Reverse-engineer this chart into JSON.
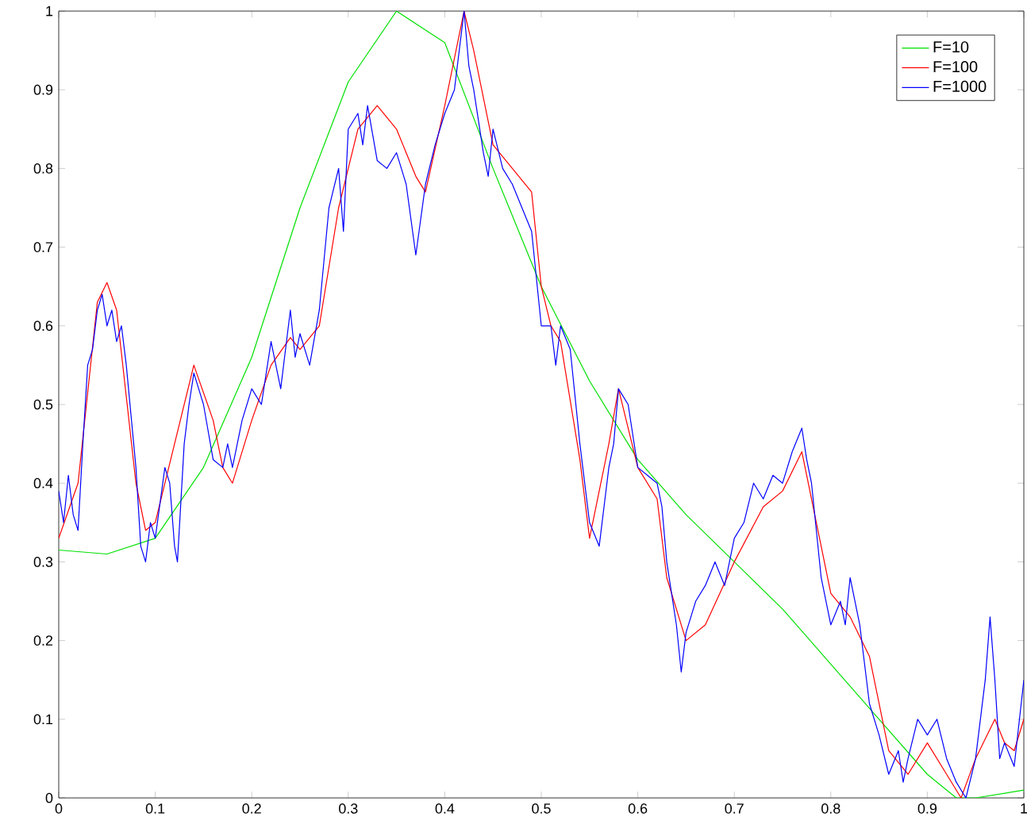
{
  "chart_data": {
    "type": "line",
    "xlim": [
      0,
      1
    ],
    "ylim": [
      0,
      1
    ],
    "xticks": [
      0,
      0.1,
      0.2,
      0.3,
      0.4,
      0.5,
      0.6,
      0.7,
      0.8,
      0.9,
      1
    ],
    "yticks": [
      0,
      0.1,
      0.2,
      0.3,
      0.4,
      0.5,
      0.6,
      0.7,
      0.8,
      0.9,
      1
    ],
    "legend": "top right",
    "grid": false,
    "marker": "none",
    "line_style": "solid",
    "series": [
      {
        "name": "F=10",
        "color": "#00e000",
        "x": [
          0,
          0.05,
          0.1,
          0.15,
          0.2,
          0.25,
          0.3,
          0.35,
          0.4,
          0.45,
          0.5,
          0.55,
          0.6,
          0.65,
          0.7,
          0.75,
          0.8,
          0.85,
          0.9,
          0.93,
          0.95,
          1.0
        ],
        "values": [
          0.315,
          0.31,
          0.33,
          0.42,
          0.56,
          0.75,
          0.91,
          1.0,
          0.96,
          0.8,
          0.65,
          0.53,
          0.43,
          0.36,
          0.3,
          0.24,
          0.17,
          0.1,
          0.03,
          0.0,
          0.0,
          0.01
        ]
      },
      {
        "name": "F=100",
        "color": "#ff0000",
        "x": [
          0,
          0.02,
          0.04,
          0.05,
          0.06,
          0.08,
          0.09,
          0.1,
          0.12,
          0.14,
          0.16,
          0.17,
          0.18,
          0.2,
          0.22,
          0.24,
          0.25,
          0.27,
          0.29,
          0.31,
          0.33,
          0.35,
          0.37,
          0.38,
          0.4,
          0.42,
          0.43,
          0.45,
          0.47,
          0.49,
          0.5,
          0.51,
          0.52,
          0.54,
          0.55,
          0.57,
          0.58,
          0.6,
          0.62,
          0.63,
          0.65,
          0.67,
          0.7,
          0.73,
          0.75,
          0.77,
          0.78,
          0.8,
          0.82,
          0.84,
          0.86,
          0.88,
          0.9,
          0.92,
          0.935,
          0.95,
          0.97,
          0.98,
          0.99,
          1.0
        ],
        "values": [
          0.33,
          0.4,
          0.63,
          0.655,
          0.62,
          0.4,
          0.34,
          0.35,
          0.45,
          0.55,
          0.48,
          0.42,
          0.4,
          0.48,
          0.55,
          0.585,
          0.57,
          0.6,
          0.75,
          0.85,
          0.88,
          0.85,
          0.79,
          0.77,
          0.88,
          1.0,
          0.95,
          0.83,
          0.8,
          0.77,
          0.65,
          0.6,
          0.58,
          0.43,
          0.33,
          0.45,
          0.52,
          0.42,
          0.38,
          0.28,
          0.2,
          0.22,
          0.3,
          0.37,
          0.39,
          0.44,
          0.38,
          0.26,
          0.23,
          0.18,
          0.06,
          0.03,
          0.07,
          0.03,
          0.0,
          0.05,
          0.1,
          0.07,
          0.06,
          0.1
        ]
      },
      {
        "name": "F=1000",
        "color": "#0000ff",
        "x": [
          0,
          0.005,
          0.01,
          0.015,
          0.02,
          0.025,
          0.03,
          0.035,
          0.04,
          0.045,
          0.05,
          0.055,
          0.06,
          0.065,
          0.07,
          0.08,
          0.085,
          0.09,
          0.095,
          0.1,
          0.11,
          0.115,
          0.12,
          0.123,
          0.13,
          0.135,
          0.14,
          0.145,
          0.15,
          0.16,
          0.17,
          0.175,
          0.18,
          0.19,
          0.2,
          0.21,
          0.22,
          0.225,
          0.23,
          0.24,
          0.245,
          0.25,
          0.26,
          0.27,
          0.28,
          0.29,
          0.295,
          0.3,
          0.31,
          0.315,
          0.32,
          0.33,
          0.34,
          0.35,
          0.36,
          0.37,
          0.38,
          0.39,
          0.4,
          0.41,
          0.42,
          0.425,
          0.43,
          0.44,
          0.445,
          0.45,
          0.46,
          0.47,
          0.48,
          0.49,
          0.5,
          0.51,
          0.515,
          0.52,
          0.53,
          0.54,
          0.55,
          0.56,
          0.57,
          0.575,
          0.58,
          0.59,
          0.6,
          0.61,
          0.62,
          0.625,
          0.63,
          0.64,
          0.645,
          0.65,
          0.66,
          0.67,
          0.68,
          0.69,
          0.7,
          0.71,
          0.72,
          0.73,
          0.74,
          0.75,
          0.76,
          0.77,
          0.775,
          0.78,
          0.79,
          0.8,
          0.81,
          0.815,
          0.82,
          0.83,
          0.84,
          0.85,
          0.86,
          0.87,
          0.875,
          0.88,
          0.89,
          0.9,
          0.91,
          0.92,
          0.93,
          0.94,
          0.95,
          0.96,
          0.965,
          0.97,
          0.975,
          0.98,
          0.99,
          1.0
        ],
        "values": [
          0.39,
          0.35,
          0.41,
          0.36,
          0.34,
          0.45,
          0.55,
          0.57,
          0.62,
          0.64,
          0.6,
          0.62,
          0.58,
          0.6,
          0.55,
          0.42,
          0.32,
          0.3,
          0.35,
          0.33,
          0.42,
          0.4,
          0.32,
          0.3,
          0.45,
          0.5,
          0.54,
          0.52,
          0.5,
          0.43,
          0.42,
          0.45,
          0.42,
          0.48,
          0.52,
          0.5,
          0.58,
          0.55,
          0.52,
          0.62,
          0.56,
          0.59,
          0.55,
          0.62,
          0.75,
          0.8,
          0.72,
          0.85,
          0.87,
          0.83,
          0.88,
          0.81,
          0.8,
          0.82,
          0.78,
          0.69,
          0.78,
          0.83,
          0.87,
          0.9,
          1.0,
          0.93,
          0.9,
          0.82,
          0.79,
          0.85,
          0.8,
          0.78,
          0.75,
          0.72,
          0.6,
          0.6,
          0.55,
          0.6,
          0.57,
          0.45,
          0.35,
          0.32,
          0.42,
          0.45,
          0.52,
          0.5,
          0.42,
          0.41,
          0.4,
          0.37,
          0.3,
          0.22,
          0.16,
          0.21,
          0.25,
          0.27,
          0.3,
          0.27,
          0.33,
          0.35,
          0.4,
          0.38,
          0.41,
          0.4,
          0.44,
          0.47,
          0.43,
          0.4,
          0.28,
          0.22,
          0.25,
          0.22,
          0.28,
          0.22,
          0.12,
          0.08,
          0.03,
          0.06,
          0.02,
          0.05,
          0.1,
          0.08,
          0.1,
          0.05,
          0.02,
          0.0,
          0.05,
          0.15,
          0.23,
          0.15,
          0.05,
          0.07,
          0.04,
          0.15
        ]
      }
    ]
  }
}
